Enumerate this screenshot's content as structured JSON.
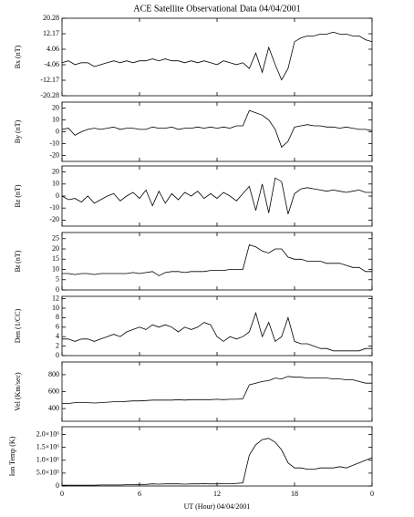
{
  "chart_data": {
    "type": "line",
    "title": "ACE Satellite Observational Data  04/04/2001",
    "xlabel": "UT (Hour)  04/04/2001",
    "xlim": [
      0,
      24
    ],
    "xticks": [
      0,
      6,
      12,
      18,
      {
        "value": 24,
        "label": "0"
      }
    ],
    "color": "#000000",
    "x": [
      0,
      0.5,
      1,
      1.5,
      2,
      2.5,
      3,
      3.5,
      4,
      4.5,
      5,
      5.5,
      6,
      6.5,
      7,
      7.5,
      8,
      8.5,
      9,
      9.5,
      10,
      10.5,
      11,
      11.5,
      12,
      12.5,
      13,
      13.5,
      14,
      14.5,
      15,
      15.5,
      16,
      16.5,
      17,
      17.5,
      18,
      18.5,
      19,
      19.5,
      20,
      20.5,
      21,
      21.5,
      22,
      22.5,
      23,
      23.5,
      24
    ],
    "panels": [
      {
        "ylabel": "Bx (nT)",
        "ylim": [
          -20.28,
          20.28
        ],
        "yticks": [
          -20.28,
          -12.17,
          -4.06,
          4.06,
          12.17,
          20.28
        ],
        "values": [
          -3,
          -2,
          -4,
          -3,
          -3,
          -5,
          -4,
          -3,
          -2,
          -3,
          -2,
          -3,
          -2,
          -2,
          -1,
          -2,
          -1,
          -2,
          -2,
          -3,
          -2,
          -3,
          -2,
          -3,
          -4,
          -2,
          -3,
          -4,
          -3,
          -6,
          2,
          -8,
          5,
          -4,
          -12,
          -6,
          8,
          10,
          11,
          11,
          12,
          12,
          13,
          12,
          12,
          11,
          11,
          9,
          8
        ]
      },
      {
        "ylabel": "By (nT)",
        "ylim": [
          -25,
          25
        ],
        "yticks": [
          -20,
          -10,
          0,
          10,
          20
        ],
        "values": [
          2,
          3,
          -3,
          0,
          2,
          3,
          2,
          3,
          4,
          2,
          3,
          3,
          2,
          2,
          4,
          3,
          3,
          4,
          2,
          3,
          3,
          4,
          3,
          4,
          3,
          4,
          3,
          5,
          5,
          18,
          16,
          14,
          10,
          2,
          -13,
          -8,
          4,
          5,
          6,
          5,
          5,
          4,
          4,
          3,
          4,
          3,
          2,
          2,
          1
        ]
      },
      {
        "ylabel": "Bz (nT)",
        "ylim": [
          -25,
          25
        ],
        "yticks": [
          -20,
          -10,
          0,
          10,
          20
        ],
        "values": [
          0,
          -3,
          -2,
          -5,
          0,
          -6,
          -3,
          0,
          2,
          -4,
          0,
          3,
          -2,
          5,
          -8,
          4,
          -6,
          2,
          -3,
          3,
          0,
          4,
          -2,
          2,
          -2,
          3,
          0,
          -4,
          2,
          8,
          -12,
          10,
          -14,
          15,
          12,
          -15,
          2,
          6,
          7,
          6,
          5,
          4,
          5,
          4,
          3,
          4,
          5,
          3,
          3
        ]
      },
      {
        "ylabel": "Bt (nT)",
        "ylim": [
          0,
          28
        ],
        "yticks": [
          0,
          5,
          10,
          15,
          20,
          25
        ],
        "values": [
          8,
          8,
          7.5,
          8,
          8,
          7.5,
          8,
          8,
          8,
          8,
          8,
          8.5,
          8,
          8.5,
          9,
          7,
          8.5,
          9,
          9,
          8.5,
          9,
          9,
          9,
          9.5,
          9.5,
          9.5,
          10,
          10,
          10,
          22,
          21,
          19,
          18,
          20,
          20,
          16,
          15,
          15,
          14,
          14,
          14,
          13,
          13,
          13,
          12,
          11,
          11,
          9,
          9
        ]
      },
      {
        "ylabel": "Den (1/CC)",
        "ylim": [
          0,
          12.5
        ],
        "yticks": [
          0,
          2,
          4,
          6,
          8,
          10,
          12
        ],
        "values": [
          3.5,
          3.5,
          3,
          3.5,
          3.5,
          3,
          3.5,
          4,
          4.5,
          4,
          5,
          5.5,
          6,
          5.5,
          6.5,
          6,
          6.5,
          6,
          5,
          6,
          5.5,
          6,
          7,
          6.5,
          4,
          3,
          4,
          3.5,
          4,
          5,
          9,
          4,
          7,
          3,
          4,
          8,
          3,
          2.5,
          2.5,
          2,
          1.5,
          1.5,
          1,
          1,
          1,
          1,
          1,
          1.5,
          1.5
        ]
      },
      {
        "ylabel": "Vel (Km/sec)",
        "ylim": [
          250,
          950
        ],
        "yticks": [
          400,
          600,
          800
        ],
        "values": [
          460,
          460,
          470,
          470,
          470,
          465,
          470,
          475,
          480,
          480,
          485,
          490,
          490,
          495,
          500,
          500,
          500,
          500,
          505,
          500,
          505,
          505,
          505,
          505,
          510,
          505,
          510,
          510,
          515,
          680,
          700,
          720,
          730,
          760,
          750,
          780,
          770,
          770,
          760,
          760,
          760,
          760,
          750,
          750,
          740,
          740,
          720,
          700,
          700
        ]
      },
      {
        "ylabel": "Ion Temp (K)",
        "ylim": [
          0,
          2300000
        ],
        "yticks": [
          0,
          {
            "value": 500000,
            "label": "5.0×10⁵"
          },
          {
            "value": 1000000,
            "label": "1.0×10⁶"
          },
          {
            "value": 1500000,
            "label": "1.5×10⁶"
          },
          {
            "value": 2000000,
            "label": "2.0×10⁶"
          }
        ],
        "values": [
          30000,
          30000,
          30000,
          30000,
          30000,
          30000,
          40000,
          40000,
          40000,
          40000,
          50000,
          50000,
          60000,
          60000,
          80000,
          70000,
          80000,
          80000,
          80000,
          70000,
          80000,
          80000,
          90000,
          80000,
          80000,
          90000,
          90000,
          100000,
          120000,
          1200000,
          1600000,
          1800000,
          1850000,
          1700000,
          1400000,
          900000,
          700000,
          700000,
          650000,
          650000,
          700000,
          700000,
          700000,
          750000,
          700000,
          800000,
          900000,
          1000000,
          1100000
        ]
      }
    ]
  }
}
